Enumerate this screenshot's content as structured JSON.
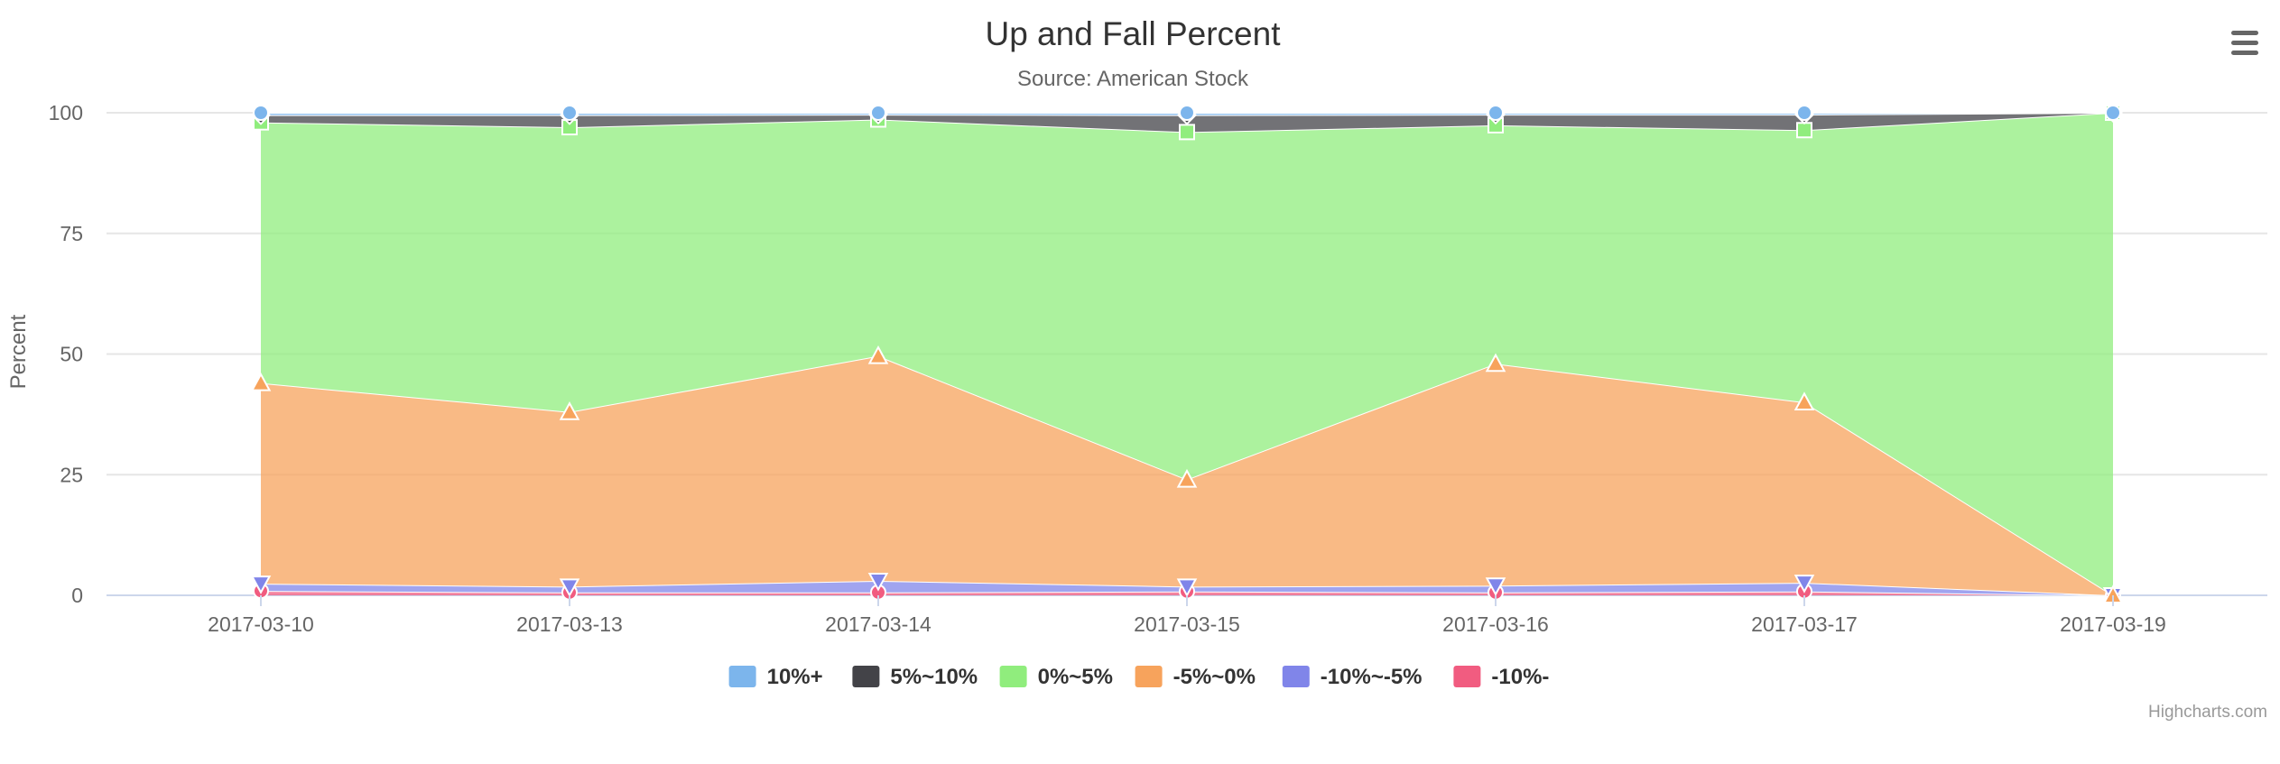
{
  "chart_data": {
    "type": "area",
    "stacking": "percent",
    "title": "Up and Fall Percent",
    "subtitle": "Source: American Stock",
    "xlabel": "",
    "ylabel": "Percent",
    "ylim": [
      0,
      100
    ],
    "yticks": [
      "0",
      "25",
      "50",
      "75",
      "100"
    ],
    "categories": [
      "2017-03-10",
      "2017-03-13",
      "2017-03-14",
      "2017-03-15",
      "2017-03-16",
      "2017-03-17",
      "2017-03-19"
    ],
    "grid": true,
    "legend_position": "bottom-center",
    "series": [
      {
        "name": "10%+",
        "color": "#7cb5ec",
        "marker": "circle",
        "values": [
          0.5,
          0.5,
          0.4,
          0.5,
          0.4,
          0.4,
          0
        ]
      },
      {
        "name": "5%~10%",
        "color": "#434348",
        "marker": "diamond",
        "values": [
          1.5,
          2.5,
          1.0,
          3.5,
          2.2,
          3.2,
          0
        ]
      },
      {
        "name": "0%~5%",
        "color": "#90ed7d",
        "marker": "square",
        "values": [
          54,
          59,
          49,
          72,
          49.4,
          56.4,
          100
        ]
      },
      {
        "name": "-5%~0%",
        "color": "#f7a35c",
        "marker": "triangle",
        "values": [
          41.6,
          36.2,
          46.6,
          22.2,
          46.0,
          37.4,
          0
        ]
      },
      {
        "name": "-10%~-5%",
        "color": "#8085e9",
        "marker": "triangle-down",
        "values": [
          1.5,
          1.2,
          2.4,
          1.0,
          1.4,
          1.8,
          0
        ]
      },
      {
        "name": "-10%-",
        "color": "#f15c80",
        "marker": "circle",
        "values": [
          0.9,
          0.6,
          0.6,
          0.8,
          0.6,
          0.8,
          0
        ]
      }
    ]
  },
  "credits": "Highcharts.com",
  "menu_icon": "hamburger-menu-icon"
}
